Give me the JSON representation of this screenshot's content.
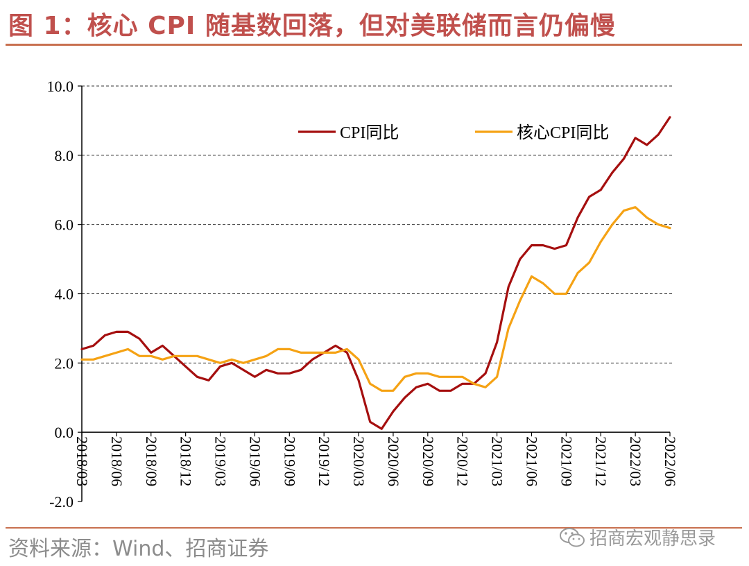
{
  "figure": {
    "title": "图 1：核心 CPI 随基数回落，但对美联储而言仍偏慢",
    "source": "资料来源：Wind、招商证券",
    "watermark": "招商宏观静思录",
    "watermark_icon": "wechat-icon"
  },
  "colors": {
    "title": "#c0504d",
    "cpi": "#a50f0f",
    "core": "#f5a214",
    "grid": "#333333",
    "axis": "#000000"
  },
  "chart_data": {
    "type": "line",
    "ylim": [
      -2.0,
      10.0
    ],
    "yticks": [
      "10.0",
      "8.0",
      "6.0",
      "4.0",
      "2.0",
      "0.0",
      "-2.0"
    ],
    "ytick_values": [
      10,
      8,
      6,
      4,
      2,
      0,
      -2
    ],
    "grid": true,
    "legend_position": "top-right",
    "x": [
      "2018/03",
      "2018/04",
      "2018/05",
      "2018/06",
      "2018/07",
      "2018/08",
      "2018/09",
      "2018/10",
      "2018/11",
      "2018/12",
      "2019/01",
      "2019/02",
      "2019/03",
      "2019/04",
      "2019/05",
      "2019/06",
      "2019/07",
      "2019/08",
      "2019/09",
      "2019/10",
      "2019/11",
      "2019/12",
      "2020/01",
      "2020/02",
      "2020/03",
      "2020/04",
      "2020/05",
      "2020/06",
      "2020/07",
      "2020/08",
      "2020/09",
      "2020/10",
      "2020/11",
      "2020/12",
      "2021/01",
      "2021/02",
      "2021/03",
      "2021/04",
      "2021/05",
      "2021/06",
      "2021/07",
      "2021/08",
      "2021/09",
      "2021/10",
      "2021/11",
      "2021/12",
      "2022/01",
      "2022/02",
      "2022/03",
      "2022/04",
      "2022/05",
      "2022/06"
    ],
    "xtick_labels": [
      "2018/03",
      "2018/06",
      "2018/09",
      "2018/12",
      "2019/03",
      "2019/06",
      "2019/09",
      "2019/12",
      "2020/03",
      "2020/06",
      "2020/09",
      "2020/12",
      "2021/03",
      "2021/06",
      "2021/09",
      "2021/12",
      "2022/03",
      "2022/06"
    ],
    "series": [
      {
        "name": "CPI同比",
        "values": [
          2.4,
          2.5,
          2.8,
          2.9,
          2.9,
          2.7,
          2.3,
          2.5,
          2.2,
          1.9,
          1.6,
          1.5,
          1.9,
          2.0,
          1.8,
          1.6,
          1.8,
          1.7,
          1.7,
          1.8,
          2.1,
          2.3,
          2.5,
          2.3,
          1.5,
          0.3,
          0.1,
          0.6,
          1.0,
          1.3,
          1.4,
          1.2,
          1.2,
          1.4,
          1.4,
          1.7,
          2.6,
          4.2,
          5.0,
          5.4,
          5.4,
          5.3,
          5.4,
          6.2,
          6.8,
          7.0,
          7.5,
          7.9,
          8.5,
          8.3,
          8.6,
          9.1
        ]
      },
      {
        "name": "核心CPI同比",
        "values": [
          2.1,
          2.1,
          2.2,
          2.3,
          2.4,
          2.2,
          2.2,
          2.1,
          2.2,
          2.2,
          2.2,
          2.1,
          2.0,
          2.1,
          2.0,
          2.1,
          2.2,
          2.4,
          2.4,
          2.3,
          2.3,
          2.3,
          2.3,
          2.4,
          2.1,
          1.4,
          1.2,
          1.2,
          1.6,
          1.7,
          1.7,
          1.6,
          1.6,
          1.6,
          1.4,
          1.3,
          1.6,
          3.0,
          3.8,
          4.5,
          4.3,
          4.0,
          4.0,
          4.6,
          4.9,
          5.5,
          6.0,
          6.4,
          6.5,
          6.2,
          6.0,
          5.9
        ]
      }
    ]
  }
}
